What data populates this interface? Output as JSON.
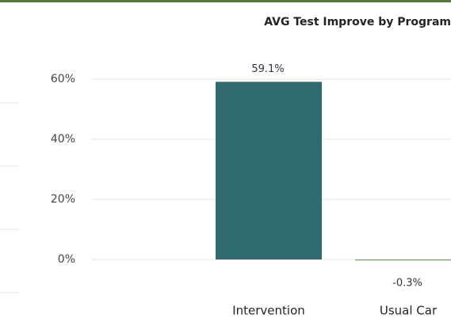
{
  "chart_data": {
    "type": "bar",
    "title": "AVG Test Improve by Program",
    "categories": [
      "Intervention",
      "Usual Car"
    ],
    "values": [
      59.1,
      -0.3
    ],
    "value_labels": [
      "59.1%",
      "-0.3%"
    ],
    "colors": [
      "#2f6b70",
      "#6e9a55"
    ],
    "ylim": [
      -6,
      76
    ],
    "yticks": [
      {
        "value": 0,
        "label": "0%"
      },
      {
        "value": 20,
        "label": "20%"
      },
      {
        "value": 40,
        "label": "40%"
      },
      {
        "value": 60,
        "label": "60%"
      }
    ],
    "grid": true
  }
}
